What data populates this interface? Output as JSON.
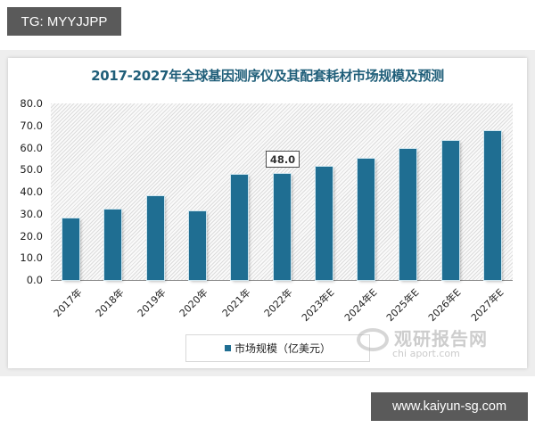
{
  "overlays": {
    "top_tag": "TG: MYYJJPP",
    "bottom_tag": "www.kaiyun-sg.com"
  },
  "watermark": {
    "cn": "观研报告网",
    "en": "chi   aport.com"
  },
  "chart_data": {
    "type": "bar",
    "title": "2017-2027年全球基因测序仪及其配套耗材市场规模及预测",
    "xlabel": "",
    "ylabel": "",
    "ylim": [
      0,
      80
    ],
    "yticks": [
      "0.0",
      "10.0",
      "20.0",
      "30.0",
      "40.0",
      "50.0",
      "60.0",
      "70.0",
      "80.0"
    ],
    "categories": [
      "2017年",
      "2018年",
      "2019年",
      "2020年",
      "2021年",
      "2022年",
      "2023年E",
      "2024年E",
      "2025年E",
      "2026年E",
      "2027年E"
    ],
    "series": [
      {
        "name": "市场规模（亿美元）",
        "color": "#1f6e92",
        "values": [
          27.7,
          32.0,
          37.9,
          31.2,
          47.6,
          48.0,
          51.2,
          55.1,
          59.3,
          63.1,
          67.3
        ]
      }
    ],
    "annotations": [
      {
        "category": "2022年",
        "label": "48.0"
      }
    ],
    "grid": false,
    "legend_position": "bottom"
  }
}
